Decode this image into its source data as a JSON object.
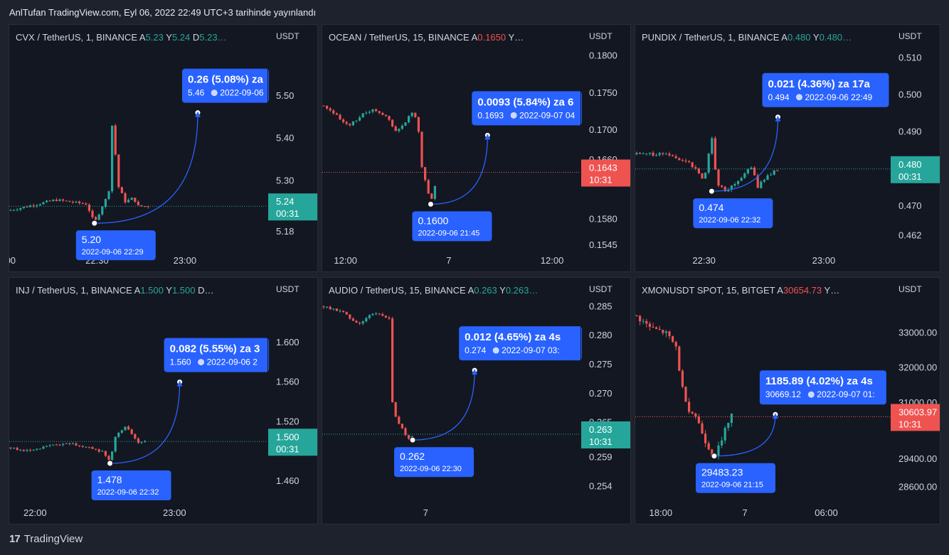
{
  "header": {
    "title": "AnlTufan TradingView.com, Eyl 06, 2022 22:49 UTC+3 tarihinde yayınlandı"
  },
  "footer": {
    "brand": "TradingView",
    "brand_mark": "17"
  },
  "colors": {
    "up": "#26a69a",
    "down": "#ef5350",
    "callout": "#2962ff",
    "arc": "#2962ff"
  },
  "chart_data": [
    {
      "type": "candlestick",
      "legend": [
        {
          "t": "CVX / TetherUS, 1, BINANCE  "
        },
        {
          "t": "A"
        },
        {
          "t": "5.23",
          "c": "up"
        },
        {
          "t": "  Y"
        },
        {
          "t": "5.24",
          "c": "up"
        },
        {
          "t": "  D"
        },
        {
          "t": "5.23…",
          "c": "up"
        }
      ],
      "unit": "USDT",
      "ylim": [
        5.14,
        5.62
      ],
      "y_ticks": [
        {
          "v": 5.5,
          "l": "5.50"
        },
        {
          "v": 5.4,
          "l": "5.40"
        },
        {
          "v": 5.3,
          "l": "5.30"
        },
        {
          "v": 5.18,
          "l": "5.18"
        }
      ],
      "x_ticks": [
        {
          "f": 0.0,
          "l": ":00"
        },
        {
          "f": 0.34,
          "l": "22:30"
        },
        {
          "f": 0.68,
          "l": "23:00"
        }
      ],
      "price": {
        "v": 5.24,
        "l": "5.24",
        "t": "00:31",
        "dir": "up"
      },
      "low": {
        "v": 5.2,
        "f": 0.33,
        "l": "5.20",
        "d": "2022-09-06 22:29"
      },
      "target": {
        "v": 5.46,
        "f": 0.73,
        "l": "0.26 (5.08%) za",
        "s": "5.46",
        "d": "2022-09-06"
      },
      "series": {
        "open": 5.23,
        "xs": 0.0,
        "xe": 0.55,
        "vol": 0.006,
        "shape": [
          [
            0,
            5.23
          ],
          [
            0.18,
            5.255
          ],
          [
            0.3,
            5.245
          ],
          [
            0.33,
            5.2
          ],
          [
            0.36,
            5.24
          ],
          [
            0.385,
            5.27
          ],
          [
            0.4,
            5.45
          ],
          [
            0.42,
            5.29
          ],
          [
            0.45,
            5.25
          ],
          [
            0.48,
            5.26
          ],
          [
            0.5,
            5.24
          ],
          [
            0.55,
            5.24
          ]
        ]
      }
    },
    {
      "type": "candlestick",
      "legend": [
        {
          "t": "OCEAN / TetherUS, 15, BINANCE  "
        },
        {
          "t": "A"
        },
        {
          "t": "0.1650",
          "c": "dn"
        },
        {
          "t": "  Y…"
        }
      ],
      "unit": "USDT",
      "ylim": [
        0.154,
        0.1815
      ],
      "y_ticks": [
        {
          "v": 0.18,
          "l": "0.1800"
        },
        {
          "v": 0.175,
          "l": "0.1750"
        },
        {
          "v": 0.17,
          "l": "0.1700"
        },
        {
          "v": 0.166,
          "l": "0.1660"
        },
        {
          "v": 0.158,
          "l": "0.1580"
        },
        {
          "v": 0.1545,
          "l": "0.1545"
        }
      ],
      "x_ticks": [
        {
          "f": 0.09,
          "l": "12:00"
        },
        {
          "f": 0.49,
          "l": "7"
        },
        {
          "f": 0.89,
          "l": "12:00"
        }
      ],
      "price": {
        "v": 0.1643,
        "l": "0.1643",
        "t": "10:31",
        "dir": "down"
      },
      "low": {
        "v": 0.16,
        "f": 0.42,
        "l": "0.1600",
        "d": "2022-09-06 21:45"
      },
      "target": {
        "v": 0.1693,
        "f": 0.64,
        "l": "0.0093 (5.84%) za 6",
        "s": "0.1693",
        "d": "2022-09-07  04"
      },
      "series": {
        "open": 0.1733,
        "xs": 0.0,
        "xe": 0.445,
        "vol": 0.0003,
        "shape": [
          [
            0,
            0.1733
          ],
          [
            0.04,
            0.1725
          ],
          [
            0.1,
            0.1705
          ],
          [
            0.16,
            0.1722
          ],
          [
            0.2,
            0.1728
          ],
          [
            0.26,
            0.1715
          ],
          [
            0.28,
            0.1698
          ],
          [
            0.31,
            0.1705
          ],
          [
            0.35,
            0.1726
          ],
          [
            0.37,
            0.171
          ],
          [
            0.385,
            0.1652
          ],
          [
            0.42,
            0.1602
          ],
          [
            0.44,
            0.163
          ],
          [
            0.445,
            0.1648
          ]
        ]
      }
    },
    {
      "type": "candlestick",
      "legend": [
        {
          "t": "PUNDIX / TetherUS, 1, BINANCE  "
        },
        {
          "t": "A"
        },
        {
          "t": "0.480",
          "c": "up"
        },
        {
          "t": "  Y"
        },
        {
          "t": "0.480…",
          "c": "up"
        }
      ],
      "unit": "USDT",
      "ylim": [
        0.4585,
        0.5135
      ],
      "y_ticks": [
        {
          "v": 0.51,
          "l": "0.510"
        },
        {
          "v": 0.5,
          "l": "0.500"
        },
        {
          "v": 0.49,
          "l": "0.490"
        },
        {
          "v": 0.47,
          "l": "0.470"
        },
        {
          "v": 0.462,
          "l": "0.462"
        }
      ],
      "x_ticks": [
        {
          "f": 0.27,
          "l": "22:30"
        },
        {
          "f": 0.74,
          "l": "23:00"
        }
      ],
      "price": {
        "v": 0.48,
        "l": "0.480",
        "t": "00:31",
        "dir": "up"
      },
      "low": {
        "v": 0.474,
        "f": 0.3,
        "l": "0.474",
        "d": "2022-09-06 22:32"
      },
      "target": {
        "v": 0.494,
        "f": 0.56,
        "l": "0.021 (4.36%) za 17a",
        "s": "0.494",
        "d": "2022-09-06  22:49"
      },
      "series": {
        "open": 0.484,
        "xs": 0.0,
        "xe": 0.56,
        "vol": 0.0008,
        "shape": [
          [
            0,
            0.484
          ],
          [
            0.12,
            0.484
          ],
          [
            0.2,
            0.482
          ],
          [
            0.24,
            0.48
          ],
          [
            0.27,
            0.477
          ],
          [
            0.3,
            0.489
          ],
          [
            0.32,
            0.476
          ],
          [
            0.36,
            0.474
          ],
          [
            0.42,
            0.478
          ],
          [
            0.46,
            0.481
          ],
          [
            0.48,
            0.475
          ],
          [
            0.5,
            0.477
          ],
          [
            0.56,
            0.48
          ]
        ]
      }
    },
    {
      "type": "candlestick",
      "legend": [
        {
          "t": "INJ / TetherUS, 1, BINANCE  "
        },
        {
          "t": "A"
        },
        {
          "t": "1.500",
          "c": "up"
        },
        {
          "t": "  Y"
        },
        {
          "t": "1.500",
          "c": "up"
        },
        {
          "t": "  D…"
        }
      ],
      "unit": "USDT",
      "ylim": [
        1.44,
        1.645
      ],
      "y_ticks": [
        {
          "v": 1.6,
          "l": "1.600"
        },
        {
          "v": 1.56,
          "l": "1.560"
        },
        {
          "v": 1.52,
          "l": "1.520"
        },
        {
          "v": 1.46,
          "l": "1.460"
        }
      ],
      "x_ticks": [
        {
          "f": 0.1,
          "l": "22:00"
        },
        {
          "f": 0.64,
          "l": "23:00"
        }
      ],
      "price": {
        "v": 1.5,
        "l": "1.500",
        "t": "00:31",
        "dir": "up"
      },
      "low": {
        "v": 1.478,
        "f": 0.39,
        "l": "1.478",
        "d": "2022-09-06 22:32"
      },
      "target": {
        "v": 1.56,
        "f": 0.66,
        "l": "0.082 (5.55%) za 3",
        "s": "1.560",
        "d": "2022-09-06  2"
      },
      "series": {
        "open": 1.494,
        "xs": 0.0,
        "xe": 0.53,
        "vol": 0.002,
        "shape": [
          [
            0,
            1.494
          ],
          [
            0.08,
            1.49
          ],
          [
            0.16,
            1.496
          ],
          [
            0.24,
            1.498
          ],
          [
            0.3,
            1.494
          ],
          [
            0.36,
            1.49
          ],
          [
            0.39,
            1.48
          ],
          [
            0.41,
            1.505
          ],
          [
            0.43,
            1.51
          ],
          [
            0.45,
            1.516
          ],
          [
            0.47,
            1.508
          ],
          [
            0.5,
            1.499
          ],
          [
            0.53,
            1.5
          ]
        ]
      }
    },
    {
      "type": "candlestick",
      "legend": [
        {
          "t": "AUDIO / TetherUS, 15, BINANCE  "
        },
        {
          "t": "A"
        },
        {
          "t": "0.263",
          "c": "up"
        },
        {
          "t": "  Y"
        },
        {
          "t": "0.263…",
          "c": "up"
        }
      ],
      "unit": "USDT",
      "ylim": [
        0.2515,
        0.2865
      ],
      "y_ticks": [
        {
          "v": 0.285,
          "l": "0.285"
        },
        {
          "v": 0.28,
          "l": "0.280"
        },
        {
          "v": 0.275,
          "l": "0.275"
        },
        {
          "v": 0.27,
          "l": "0.270"
        },
        {
          "v": 0.265,
          "l": "0.265"
        },
        {
          "v": 0.259,
          "l": "0.259"
        },
        {
          "v": 0.254,
          "l": "0.254"
        }
      ],
      "x_ticks": [
        {
          "f": 0.4,
          "l": "7"
        }
      ],
      "price": {
        "v": 0.263,
        "l": "0.263",
        "t": "10:31",
        "dir": "up"
      },
      "low": {
        "v": 0.262,
        "f": 0.35,
        "l": "0.262",
        "d": "2022-09-06 22:30"
      },
      "target": {
        "v": 0.274,
        "f": 0.59,
        "l": "0.012 (4.65%) za 4s",
        "s": "0.274",
        "d": "2022-09-07  03:"
      },
      "series": {
        "open": 0.285,
        "xs": 0.0,
        "xe": 0.36,
        "vol": 0.0004,
        "shape": [
          [
            0,
            0.285
          ],
          [
            0.08,
            0.284
          ],
          [
            0.14,
            0.282
          ],
          [
            0.2,
            0.284
          ],
          [
            0.26,
            0.283
          ],
          [
            0.27,
            0.269
          ],
          [
            0.29,
            0.265
          ],
          [
            0.31,
            0.264
          ],
          [
            0.33,
            0.262
          ],
          [
            0.35,
            0.2625
          ],
          [
            0.36,
            0.2635
          ]
        ]
      }
    },
    {
      "type": "candlestick",
      "legend": [
        {
          "t": "XMONUSDT SPOT, 15, BITGET  "
        },
        {
          "t": "A"
        },
        {
          "t": "30654.73",
          "c": "dn"
        },
        {
          "t": "  Y…"
        }
      ],
      "unit": "USDT",
      "ylim": [
        28200,
        34000
      ],
      "y_ticks": [
        {
          "v": 33000,
          "l": "33000.00"
        },
        {
          "v": 32000,
          "l": "32000.00"
        },
        {
          "v": 31000,
          "l": "31000.00"
        },
        {
          "v": 29400,
          "l": "29400.00"
        },
        {
          "v": 28600,
          "l": "28600.00"
        }
      ],
      "x_ticks": [
        {
          "f": 0.1,
          "l": "18:00"
        },
        {
          "f": 0.43,
          "l": "7"
        },
        {
          "f": 0.75,
          "l": "06:00"
        }
      ],
      "price": {
        "v": 30603.97,
        "l": "30603.97",
        "t": "10:31",
        "dir": "down"
      },
      "low": {
        "v": 29483.23,
        "f": 0.31,
        "l": "29483.23",
        "d": "2022-09-06 21:15"
      },
      "target": {
        "v": 30669.12,
        "f": 0.55,
        "l": "1185.89 (4.02%) za 4s",
        "s": "30669.12",
        "d": "2022-09-07  01:"
      },
      "series": {
        "open": 33500,
        "xs": 0.0,
        "xe": 0.38,
        "vol": 150,
        "shape": [
          [
            0,
            33500
          ],
          [
            0.06,
            33150
          ],
          [
            0.12,
            33000
          ],
          [
            0.16,
            32600
          ],
          [
            0.18,
            31600
          ],
          [
            0.2,
            30900
          ],
          [
            0.24,
            30600
          ],
          [
            0.27,
            30000
          ],
          [
            0.3,
            29550
          ],
          [
            0.31,
            29500
          ],
          [
            0.34,
            29900
          ],
          [
            0.36,
            30400
          ],
          [
            0.38,
            30700
          ]
        ]
      }
    }
  ]
}
